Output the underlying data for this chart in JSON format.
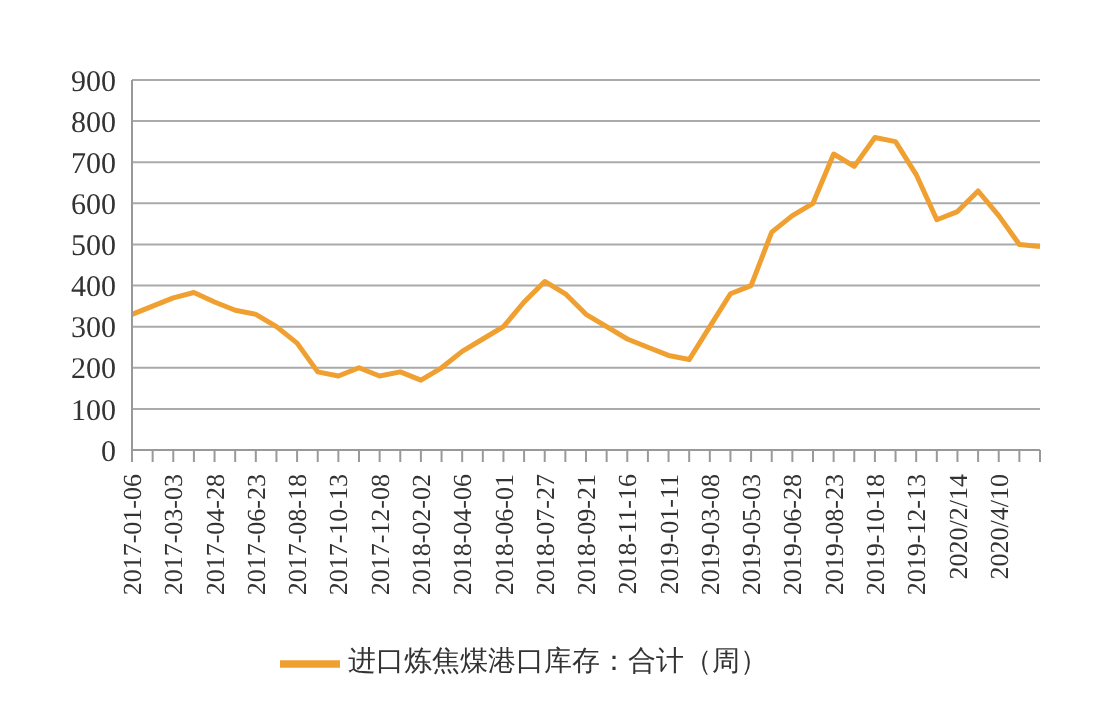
{
  "chart_data": {
    "type": "line",
    "categories": [
      "2017-01-06",
      null,
      "2017-03-03",
      null,
      "2017-04-28",
      null,
      "2017-06-23",
      null,
      "2017-08-18",
      null,
      "2017-10-13",
      null,
      "2017-12-08",
      null,
      "2018-02-02",
      null,
      "2018-04-06",
      null,
      "2018-06-01",
      null,
      "2018-07-27",
      null,
      "2018-09-21",
      null,
      "2018-11-16",
      null,
      "2019-01-11",
      null,
      "2019-03-08",
      null,
      "2019-05-03",
      null,
      "2019-06-28",
      null,
      "2019-08-23",
      null,
      "2019-10-18",
      null,
      "2019-12-13",
      null,
      "2020/2/14",
      null,
      "2020/4/10",
      null,
      null
    ],
    "series": [
      {
        "name": "进口炼焦煤港口库存：合计（周）",
        "color": "#f0a030",
        "values": [
          330,
          350,
          370,
          383,
          360,
          340,
          330,
          300,
          260,
          190,
          180,
          200,
          180,
          190,
          170,
          200,
          240,
          270,
          300,
          360,
          410,
          380,
          330,
          300,
          270,
          250,
          230,
          220,
          300,
          380,
          400,
          530,
          570,
          600,
          720,
          690,
          760,
          750,
          670,
          560,
          580,
          630,
          570,
          500,
          495
        ]
      }
    ],
    "ylim": [
      0,
      900
    ],
    "yticks": [
      0,
      100,
      200,
      300,
      400,
      500,
      600,
      700,
      800,
      900
    ],
    "grid": "y",
    "legend": "bottom",
    "marker": "none",
    "line_style": "solid"
  }
}
